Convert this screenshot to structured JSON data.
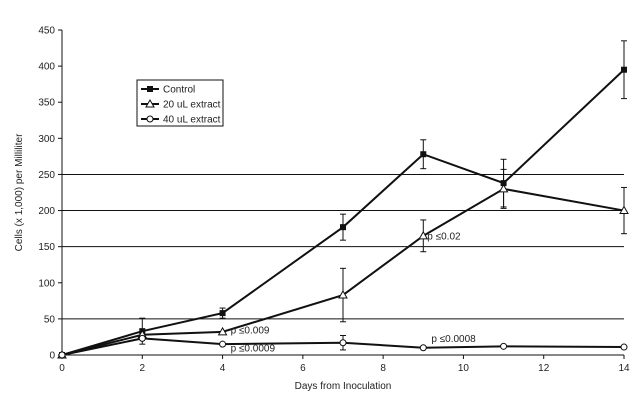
{
  "chart_data": {
    "type": "line",
    "title": "",
    "xlabel": "Days from Inoculation",
    "ylabel": "Cells (x 1,000) per Milliliter",
    "xlim": [
      0,
      14
    ],
    "ylim": [
      0,
      450
    ],
    "xticks": [
      0,
      2,
      4,
      6,
      8,
      10,
      12,
      14
    ],
    "yticks": [
      0,
      50,
      100,
      150,
      200,
      250,
      300,
      350,
      400,
      450
    ],
    "gridlines_y": [
      50,
      250,
      200,
      150
    ],
    "series": [
      {
        "name": "Control",
        "marker": "square",
        "points": [
          {
            "x": 0,
            "y": 0
          },
          {
            "x": 2,
            "y": 33,
            "err": 18
          },
          {
            "x": 4,
            "y": 58,
            "err": 7
          },
          {
            "x": 7,
            "y": 177,
            "err": 18
          },
          {
            "x": 9,
            "y": 278,
            "err": 20
          },
          {
            "x": 11,
            "y": 238,
            "err": 33
          },
          {
            "x": 14,
            "y": 395,
            "err": 40
          }
        ]
      },
      {
        "name": "20 uL extract",
        "marker": "triangle",
        "points": [
          {
            "x": 0,
            "y": 0
          },
          {
            "x": 2,
            "y": 28
          },
          {
            "x": 4,
            "y": 32
          },
          {
            "x": 7,
            "y": 83,
            "err": 37
          },
          {
            "x": 9,
            "y": 165,
            "err": 22
          },
          {
            "x": 11,
            "y": 230,
            "err": 27
          },
          {
            "x": 14,
            "y": 200,
            "err": 32
          }
        ]
      },
      {
        "name": "40 uL extract",
        "marker": "circle",
        "points": [
          {
            "x": 0,
            "y": 0
          },
          {
            "x": 2,
            "y": 23
          },
          {
            "x": 4,
            "y": 15
          },
          {
            "x": 7,
            "y": 17,
            "err": 10
          },
          {
            "x": 9,
            "y": 10
          },
          {
            "x": 11,
            "y": 12
          },
          {
            "x": 14,
            "y": 11
          }
        ]
      }
    ],
    "annotations": [
      {
        "text": "p ≤0.009",
        "x": 4.2,
        "y": 30
      },
      {
        "text": "p ≤0.0009",
        "x": 4.2,
        "y": 5
      },
      {
        "text": "p ≤0.02",
        "x": 9.1,
        "y": 160
      },
      {
        "text": "p ≤0.0008",
        "x": 9.2,
        "y": 18
      }
    ],
    "legend_position": "upper-left"
  }
}
